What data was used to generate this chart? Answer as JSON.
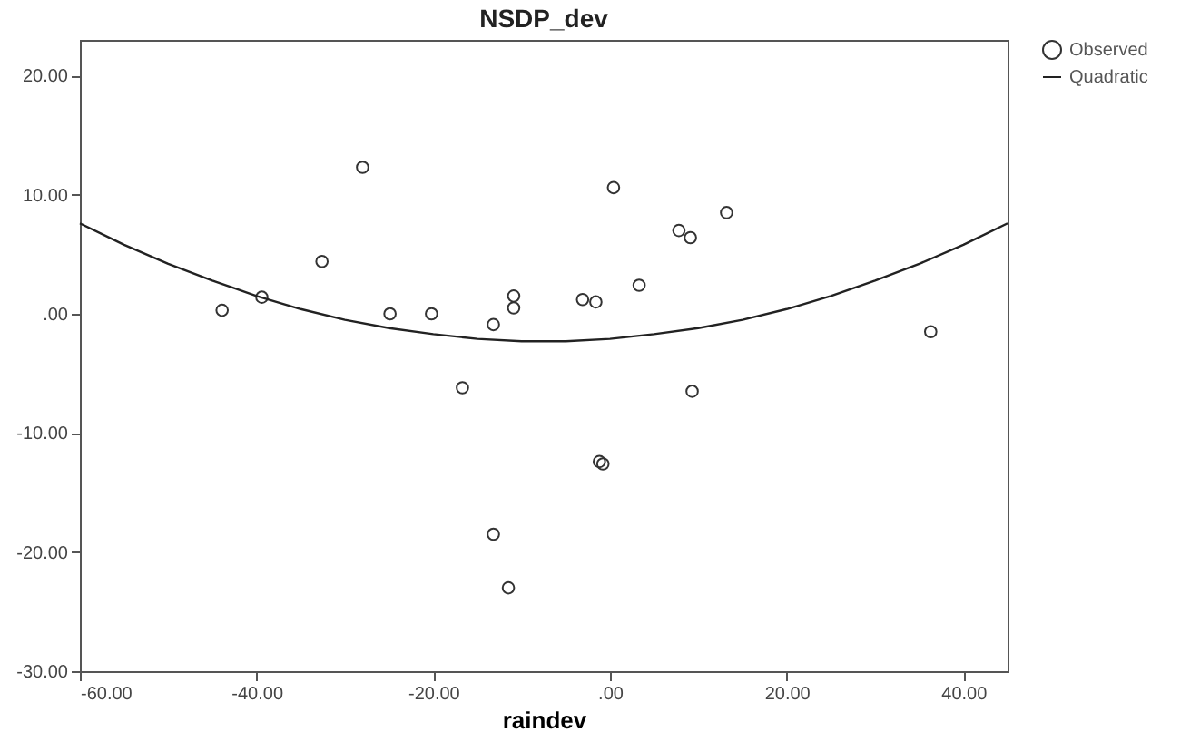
{
  "chart_data": {
    "type": "scatter",
    "title": "NSDP_dev",
    "xlabel": "raindev",
    "xlim": [
      -60,
      45
    ],
    "ylim": [
      -30,
      23
    ],
    "xticks": [
      {
        "value": -60,
        "label": "-60.00"
      },
      {
        "value": -40,
        "label": "-40.00"
      },
      {
        "value": -20,
        "label": "-20.00"
      },
      {
        "value": 0,
        "label": ".00"
      },
      {
        "value": 20,
        "label": "20.00"
      },
      {
        "value": 40,
        "label": "40.00"
      }
    ],
    "yticks": [
      {
        "value": -30,
        "label": "-30.00"
      },
      {
        "value": -20,
        "label": "-20.00"
      },
      {
        "value": -10,
        "label": "-10.00"
      },
      {
        "value": 0,
        "label": ".00"
      },
      {
        "value": 10,
        "label": "10.00"
      },
      {
        "value": 20,
        "label": "20.00"
      }
    ],
    "grid": false,
    "legend": "top right",
    "line_style": "solid",
    "series": [
      {
        "name": "Observed",
        "marker": "circle",
        "color": "#333333",
        "x": [
          -43.9,
          -39.4,
          -32.6,
          -28.0,
          -24.9,
          -20.2,
          -16.7,
          -13.2,
          -10.9,
          -10.9,
          -13.2,
          -11.5,
          -3.1,
          -1.6,
          -1.2,
          -0.8,
          0.4,
          3.3,
          7.8,
          9.1,
          13.2,
          9.3,
          36.3
        ],
        "values": [
          0.3,
          1.4,
          4.4,
          12.3,
          0,
          0,
          -6.2,
          -0.9,
          1.5,
          0.5,
          -18.5,
          -23.0,
          1.2,
          1.0,
          -12.4,
          -12.6,
          10.6,
          2.4,
          7.0,
          6.4,
          8.5,
          -6.5,
          -1.5
        ]
      },
      {
        "name": "Quadratic",
        "type": "line",
        "color": "#222222",
        "x": [
          -60,
          -55,
          -50,
          -45,
          -40,
          -35,
          -30,
          -25,
          -20,
          -15,
          -10,
          -5,
          0,
          5,
          10,
          15,
          20,
          25,
          30,
          35,
          40,
          45
        ],
        "values": [
          7.6,
          5.8,
          4.2,
          2.8,
          1.5,
          0.4,
          -0.5,
          -1.2,
          -1.7,
          -2.1,
          -2.3,
          -2.3,
          -2.1,
          -1.7,
          -1.2,
          -0.5,
          0.4,
          1.5,
          2.8,
          4.2,
          5.8,
          7.6
        ]
      }
    ]
  }
}
